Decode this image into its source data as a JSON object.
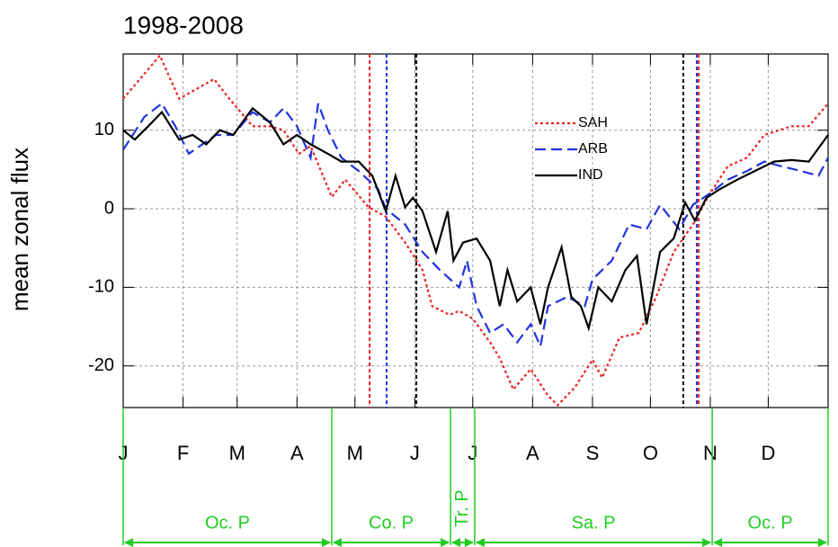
{
  "chart_data": {
    "type": "line",
    "title": "1998-2008",
    "y_label": "mean zonal flux",
    "xlim": [
      0,
      365
    ],
    "ylim": [
      -25.3,
      19.7
    ],
    "yticks": [
      -20,
      -10,
      0,
      10
    ],
    "xticks": [
      {
        "value": 0,
        "label": "J"
      },
      {
        "value": 31,
        "label": "F"
      },
      {
        "value": 59,
        "label": "M"
      },
      {
        "value": 90,
        "label": "A"
      },
      {
        "value": 120,
        "label": "M"
      },
      {
        "value": 151,
        "label": "J"
      },
      {
        "value": 181,
        "label": "J"
      },
      {
        "value": 212,
        "label": "A"
      },
      {
        "value": 243,
        "label": "S"
      },
      {
        "value": 273,
        "label": "O"
      },
      {
        "value": 304,
        "label": "N"
      },
      {
        "value": 334,
        "label": "D"
      }
    ],
    "grid": true,
    "legend_position": "upper-center",
    "series": [
      {
        "name": "SAH",
        "color": "#ee2222",
        "dash": "dotted",
        "x": [
          0,
          19,
          29,
          47,
          55,
          67,
          76,
          83,
          91,
          97,
          108,
          115,
          127,
          136,
          146,
          155,
          160,
          169,
          174,
          181,
          190,
          195,
          202,
          211,
          220,
          225,
          234,
          243,
          248,
          257,
          267,
          276,
          285,
          295,
          304,
          313,
          323,
          332,
          346,
          355,
          365
        ],
        "values": [
          14,
          19.5,
          14,
          16.5,
          14,
          10.5,
          10.5,
          10,
          7,
          8,
          1.5,
          3.7,
          0.2,
          -1,
          -4.3,
          -7.8,
          -12.4,
          -13.5,
          -13,
          -14,
          -17,
          -19,
          -23,
          -20.4,
          -23.8,
          -25,
          -22.7,
          -19.2,
          -21.5,
          -16.4,
          -15.8,
          -11.2,
          -5.5,
          -2,
          2,
          5.4,
          6.5,
          9.4,
          10.5,
          10.5,
          13.4
        ]
      },
      {
        "name": "ARB",
        "color": "#2233dd",
        "dash": "dashed",
        "x": [
          0,
          11,
          20,
          27,
          34,
          48,
          57,
          67,
          76,
          83,
          90,
          97,
          101,
          106,
          113,
          122,
          132,
          136,
          146,
          155,
          164,
          174,
          178,
          183,
          190,
          197,
          204,
          211,
          216,
          220,
          230,
          239,
          243,
          253,
          262,
          271,
          278,
          288,
          295,
          304,
          313,
          323,
          332,
          341,
          351,
          360,
          365
        ],
        "values": [
          7.5,
          11.7,
          13.4,
          10.5,
          7,
          9.4,
          9.4,
          12.3,
          11,
          12.8,
          10.5,
          6.5,
          13.4,
          10,
          6.5,
          4.8,
          2.5,
          0,
          -2,
          -5.5,
          -7.8,
          -10,
          -6.6,
          -12.4,
          -15.8,
          -14.7,
          -17,
          -14.7,
          -17.5,
          -12.4,
          -11.2,
          -12.4,
          -9,
          -6.6,
          -2,
          -2.6,
          0.5,
          -2.6,
          0.5,
          2,
          3.7,
          4.8,
          6,
          5.4,
          4.8,
          4.2,
          6.5
        ]
      },
      {
        "name": "IND",
        "color": "#000000",
        "dash": "solid",
        "x": [
          0,
          6,
          13,
          20,
          29,
          36,
          43,
          50,
          57,
          67,
          76,
          83,
          90,
          97,
          106,
          113,
          122,
          129,
          136,
          141,
          146,
          150,
          155,
          162,
          168,
          171,
          176,
          183,
          190,
          195,
          199,
          204,
          211,
          216,
          220,
          227,
          232,
          237,
          241,
          246,
          253,
          260,
          266,
          271,
          278,
          285,
          291,
          296,
          302,
          309,
          318,
          327,
          337,
          346,
          355,
          365
        ],
        "values": [
          10,
          8.8,
          10.5,
          12.3,
          8.8,
          9.4,
          8.2,
          10,
          9.4,
          12.8,
          11,
          8.2,
          9.4,
          8.2,
          7,
          6,
          6,
          4.2,
          -0.3,
          4.2,
          0.2,
          1.4,
          -0.3,
          -5.5,
          -0.3,
          -6.6,
          -4.3,
          -3.8,
          -6.6,
          -12.4,
          -7.8,
          -11.8,
          -10,
          -14.7,
          -10,
          -4.9,
          -11.2,
          -12.4,
          -15.2,
          -10,
          -11.8,
          -7.8,
          -6,
          -14.7,
          -5.5,
          -3.8,
          0.8,
          -1.5,
          1.4,
          2.5,
          3.7,
          4.8,
          6,
          6.2,
          6,
          9.4
        ]
      }
    ],
    "markers": [
      {
        "x": 127.6,
        "color": "#ee2222"
      },
      {
        "x": 136.4,
        "color": "#2233dd"
      },
      {
        "x": 151.8,
        "color": "#000000"
      },
      {
        "x": 290,
        "color": "#000000"
      },
      {
        "x": 297,
        "color": "#2233dd"
      },
      {
        "x": 298,
        "color": "#ee2222"
      }
    ],
    "period_color": "#22cc22",
    "period_bounds": [
      0,
      108,
      169.5,
      182,
      305,
      365
    ],
    "periods": [
      "Oc. P",
      "Co. P",
      "Tr. P",
      "Sa. P",
      "Oc. P"
    ]
  }
}
